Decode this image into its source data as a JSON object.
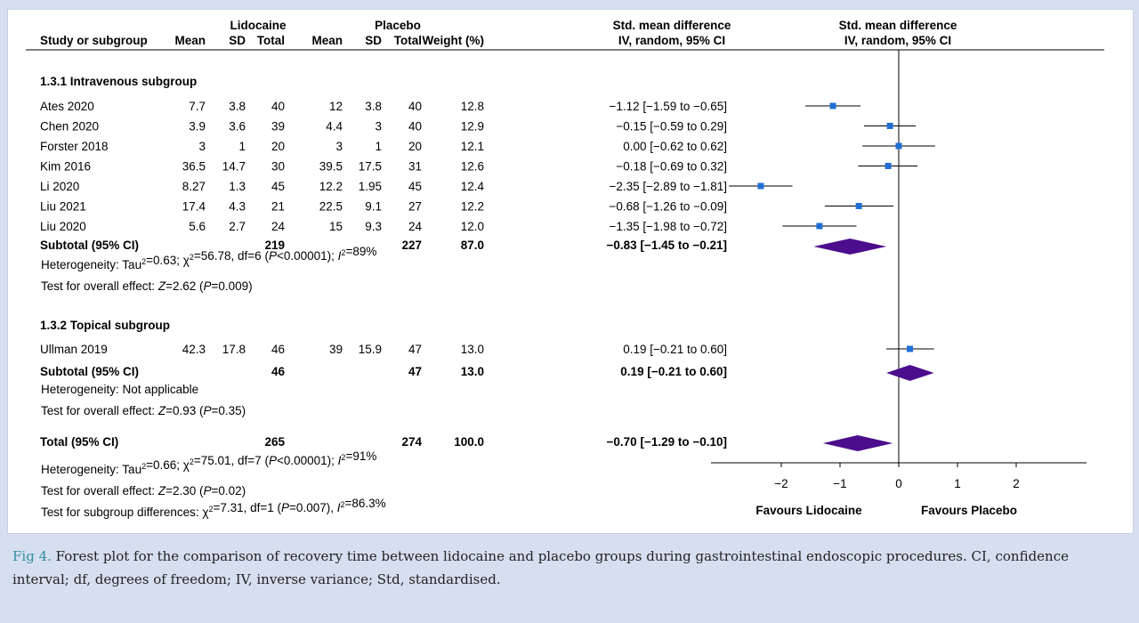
{
  "headers": {
    "lidocaine": "Lidocaine",
    "placebo": "Placebo",
    "smd_title": "Std. mean difference",
    "smd_method": "IV, random, 95% CI",
    "study": "Study or subgroup",
    "mean": "Mean",
    "sd": "SD",
    "total": "Total",
    "weight": "Weight (%)",
    "plot_title": "Std. mean difference",
    "plot_method": "IV, random, 95% CI"
  },
  "subgroups": [
    {
      "title": "1.3.1 Intravenous subgroup",
      "studies": [
        {
          "name": "Ates 2020",
          "lm": "7.7",
          "lsd": "3.8",
          "lt": "40",
          "pm": "12",
          "psd": "3.8",
          "pt": "40",
          "w": "12.8",
          "ci": "−1.12 [−1.59 to −0.65]",
          "est": -1.12,
          "lo": -1.59,
          "hi": -0.65
        },
        {
          "name": "Chen 2020",
          "lm": "3.9",
          "lsd": "3.6",
          "lt": "39",
          "pm": "4.4",
          "psd": "3",
          "pt": "40",
          "w": "12.9",
          "ci": "−0.15 [−0.59 to 0.29]",
          "est": -0.15,
          "lo": -0.59,
          "hi": 0.29
        },
        {
          "name": "Forster 2018",
          "lm": "3",
          "lsd": "1",
          "lt": "20",
          "pm": "3",
          "psd": "1",
          "pt": "20",
          "w": "12.1",
          "ci": "0.00 [−0.62 to 0.62]",
          "est": 0.0,
          "lo": -0.62,
          "hi": 0.62
        },
        {
          "name": "Kim 2016",
          "lm": "36.5",
          "lsd": "14.7",
          "lt": "30",
          "pm": "39.5",
          "psd": "17.5",
          "pt": "31",
          "w": "12.6",
          "ci": "−0.18 [−0.69 to 0.32]",
          "est": -0.18,
          "lo": -0.69,
          "hi": 0.32
        },
        {
          "name": "Li 2020",
          "lm": "8.27",
          "lsd": "1.3",
          "lt": "45",
          "pm": "12.2",
          "psd": "1.95",
          "pt": "45",
          "w": "12.4",
          "ci": "−2.35 [−2.89 to −1.81]",
          "est": -2.35,
          "lo": -2.89,
          "hi": -1.81
        },
        {
          "name": "Liu 2021",
          "lm": "17.4",
          "lsd": "4.3",
          "lt": "21",
          "pm": "22.5",
          "psd": "9.1",
          "pt": "27",
          "w": "12.2",
          "ci": "−0.68 [−1.26 to −0.09]",
          "est": -0.68,
          "lo": -1.26,
          "hi": -0.09
        },
        {
          "name": "Liu 2020",
          "lm": "5.6",
          "lsd": "2.7",
          "lt": "24",
          "pm": "15",
          "psd": "9.3",
          "pt": "24",
          "w": "12.0",
          "ci": "−1.35 [−1.98 to −0.72]",
          "est": -1.35,
          "lo": -1.98,
          "hi": -0.72
        }
      ],
      "subtotal": {
        "label": "Subtotal (95% CI)",
        "lt": "219",
        "pt": "227",
        "w": "87.0",
        "ci": "−0.83 [−1.45 to −0.21]",
        "est": -0.83,
        "lo": -1.45,
        "hi": -0.21
      },
      "notes": [
        [
          {
            "t": "Heterogeneity: Tau"
          },
          {
            "t": "2",
            "sup": true
          },
          {
            "t": "=0.63; "
          },
          {
            "t": "χ"
          },
          {
            "t": "2",
            "sup": true
          },
          {
            "t": "=56.78, df=6 ("
          },
          {
            "t": "P",
            "it": true
          },
          {
            "t": "<0.00001); "
          },
          {
            "t": "I",
            "it": true
          },
          {
            "t": "2",
            "sup": true
          },
          {
            "t": "=89%"
          }
        ],
        [
          {
            "t": "Test for overall effect: "
          },
          {
            "t": "Z",
            "it": true
          },
          {
            "t": "=2.62 ("
          },
          {
            "t": "P",
            "it": true
          },
          {
            "t": "=0.009)"
          }
        ]
      ]
    },
    {
      "title": "1.3.2 Topical subgroup",
      "studies": [
        {
          "name": "Ullman 2019",
          "lm": "42.3",
          "lsd": "17.8",
          "lt": "46",
          "pm": "39",
          "psd": "15.9",
          "pt": "47",
          "w": "13.0",
          "ci": "0.19 [−0.21 to 0.60]",
          "est": 0.19,
          "lo": -0.21,
          "hi": 0.6
        }
      ],
      "subtotal": {
        "label": "Subtotal (95% CI)",
        "lt": "46",
        "pt": "47",
        "w": "13.0",
        "ci": "0.19 [−0.21 to 0.60]",
        "est": 0.19,
        "lo": -0.21,
        "hi": 0.6
      },
      "notes": [
        [
          {
            "t": "Heterogeneity: Not applicable"
          }
        ],
        [
          {
            "t": "Test for overall effect: "
          },
          {
            "t": "Z",
            "it": true
          },
          {
            "t": "=0.93 ("
          },
          {
            "t": "P",
            "it": true
          },
          {
            "t": "=0.35)"
          }
        ]
      ]
    }
  ],
  "total": {
    "label": "Total (95% CI)",
    "lt": "265",
    "pt": "274",
    "w": "100.0",
    "ci": "−0.70 [−1.29 to −0.10]",
    "est": -0.7,
    "lo": -1.29,
    "hi": -0.1
  },
  "total_notes": [
    [
      {
        "t": "Heterogeneity: Tau"
      },
      {
        "t": "2",
        "sup": true
      },
      {
        "t": "=0.66; "
      },
      {
        "t": "χ"
      },
      {
        "t": "2",
        "sup": true
      },
      {
        "t": "=75.01, df=7 ("
      },
      {
        "t": "P",
        "it": true
      },
      {
        "t": "<0.00001); "
      },
      {
        "t": "I",
        "it": true
      },
      {
        "t": "2",
        "sup": true
      },
      {
        "t": "=91%"
      }
    ],
    [
      {
        "t": "Test for overall effect: "
      },
      {
        "t": "Z",
        "it": true
      },
      {
        "t": "=2.30 ("
      },
      {
        "t": "P",
        "it": true
      },
      {
        "t": "=0.02)"
      }
    ],
    [
      {
        "t": "Test for subgroup differences: "
      },
      {
        "t": "χ"
      },
      {
        "t": "2",
        "sup": true
      },
      {
        "t": "=7.31, df=1 ("
      },
      {
        "t": "P",
        "it": true
      },
      {
        "t": "=0.007), "
      },
      {
        "t": "I",
        "it": true
      },
      {
        "t": "2",
        "sup": true
      },
      {
        "t": "=86.3%"
      }
    ]
  ],
  "axis": {
    "ticks": [
      -2,
      -1,
      0,
      1,
      2
    ],
    "tick_labels": [
      "−2",
      "−1",
      "0",
      "1",
      "2"
    ],
    "favours_left": "Favours Lidocaine",
    "favours_right": "Favours Placebo"
  },
  "colors": {
    "marker": "#1f6fd6",
    "diamond": "#4b0d8c",
    "caption_label": "#2f8fa0",
    "background": "#d6dff0"
  },
  "chart_data": {
    "type": "forest",
    "title": "Std. mean difference",
    "subtitle": "IV, random, 95% CI",
    "xlabel": "",
    "ylabel": "",
    "x_ticks": [
      -2,
      -1,
      0,
      1,
      2
    ],
    "reference_line": 0,
    "series": [
      {
        "name": "Ates 2020",
        "estimate": -1.12,
        "ci_low": -1.59,
        "ci_high": -0.65,
        "weight": 12.8
      },
      {
        "name": "Chen 2020",
        "estimate": -0.15,
        "ci_low": -0.59,
        "ci_high": 0.29,
        "weight": 12.9
      },
      {
        "name": "Forster 2018",
        "estimate": 0.0,
        "ci_low": -0.62,
        "ci_high": 0.62,
        "weight": 12.1
      },
      {
        "name": "Kim 2016",
        "estimate": -0.18,
        "ci_low": -0.69,
        "ci_high": 0.32,
        "weight": 12.6
      },
      {
        "name": "Li 2020",
        "estimate": -2.35,
        "ci_low": -2.89,
        "ci_high": -1.81,
        "weight": 12.4
      },
      {
        "name": "Liu 2021",
        "estimate": -0.68,
        "ci_low": -1.26,
        "ci_high": -0.09,
        "weight": 12.2
      },
      {
        "name": "Liu 2020",
        "estimate": -1.35,
        "ci_low": -1.98,
        "ci_high": -0.72,
        "weight": 12.0
      },
      {
        "name": "Subtotal (95% CI)",
        "estimate": -0.83,
        "ci_low": -1.45,
        "ci_high": -0.21,
        "weight": 87.0
      },
      {
        "name": "Ullman 2019",
        "estimate": 0.19,
        "ci_low": -0.21,
        "ci_high": 0.6,
        "weight": 13.0
      },
      {
        "name": "Subtotal (95% CI)",
        "estimate": 0.19,
        "ci_low": -0.21,
        "ci_high": 0.6,
        "weight": 13.0
      },
      {
        "name": "Total (95% CI)",
        "estimate": -0.7,
        "ci_low": -1.29,
        "ci_high": -0.1,
        "weight": 100.0
      }
    ]
  },
  "caption": {
    "label": "Fig 4.",
    "text": "Forest plot for the comparison of recovery time between lidocaine and placebo groups during gastrointestinal endoscopic procedures. CI, confidence interval; df, degrees of freedom; IV, inverse variance; Std, standardised."
  }
}
